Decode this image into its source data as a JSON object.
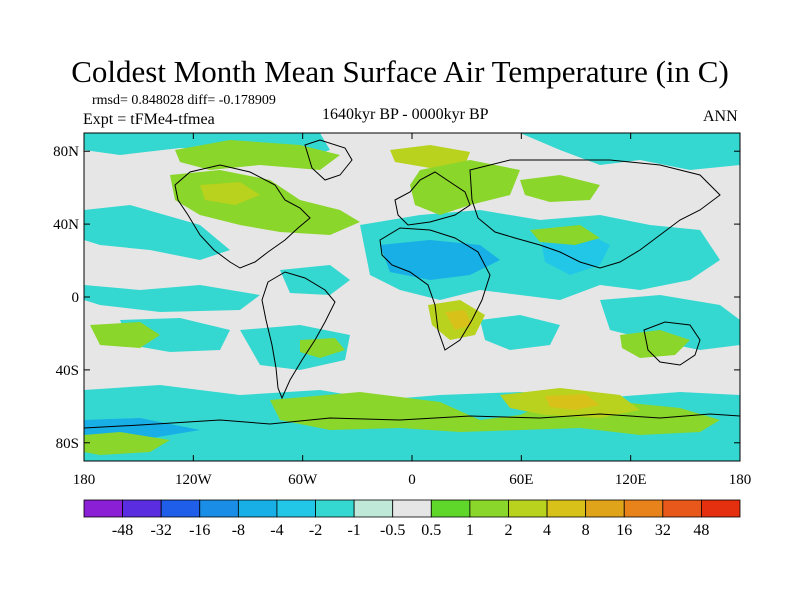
{
  "header": {
    "title": "Coldest Month Mean Surface Air Temperature (in C)",
    "stats": "rmsd= 0.848028 diff= -0.178909",
    "experiment": "Expt = tFMe4-tfmea",
    "period": "1640kyr BP - 0000kyr BP",
    "season": "ANN"
  },
  "axes": {
    "lat_ticks": [
      {
        "value": 80,
        "label": "80N"
      },
      {
        "value": 40,
        "label": "40N"
      },
      {
        "value": 0,
        "label": "0"
      },
      {
        "value": -40,
        "label": "40S"
      },
      {
        "value": -80,
        "label": "80S"
      }
    ],
    "lon_ticks": [
      {
        "value": -180,
        "label": "180"
      },
      {
        "value": -120,
        "label": "120W"
      },
      {
        "value": -60,
        "label": "60W"
      },
      {
        "value": 0,
        "label": "0"
      },
      {
        "value": 60,
        "label": "60E"
      },
      {
        "value": 120,
        "label": "120E"
      },
      {
        "value": 180,
        "label": "180"
      }
    ]
  },
  "colorbar": {
    "colors": [
      "#8a1fd6",
      "#5a2ee0",
      "#1e5ee8",
      "#1a8ee6",
      "#18aee6",
      "#22c6e6",
      "#34d8d0",
      "#bfe8d8",
      "#e6e6e6",
      "#5ed62a",
      "#8ad62a",
      "#b8d21e",
      "#d8c21a",
      "#e0a41a",
      "#e8821a",
      "#e8581a",
      "#e4300e"
    ],
    "labels": [
      "-48",
      "-32",
      "-16",
      "-8",
      "-4",
      "-2",
      "-1",
      "-0.5",
      "0.5",
      "1",
      "2",
      "4",
      "8",
      "16",
      "32",
      "48"
    ]
  },
  "map_regions": [
    {
      "name": "greenland-arctic-warm",
      "level": "1",
      "color": "#8ad62a"
    },
    {
      "name": "north-america-warm",
      "level": "1",
      "color": "#8ad62a"
    },
    {
      "name": "scandinavia-warm",
      "level": "2",
      "color": "#b8d21e"
    },
    {
      "name": "siberia-warm",
      "level": "2",
      "color": "#b8d21e"
    },
    {
      "name": "sahara-arabia-cool",
      "level": "-4",
      "color": "#18aee6"
    },
    {
      "name": "india-cool",
      "level": "-2",
      "color": "#22c6e6"
    },
    {
      "name": "southern-africa-warm",
      "level": "4",
      "color": "#d8c21a"
    },
    {
      "name": "southern-ocean-warm",
      "level": "4",
      "color": "#d8c21a"
    },
    {
      "name": "pacific-cool",
      "level": "-1",
      "color": "#34d8d0"
    }
  ]
}
